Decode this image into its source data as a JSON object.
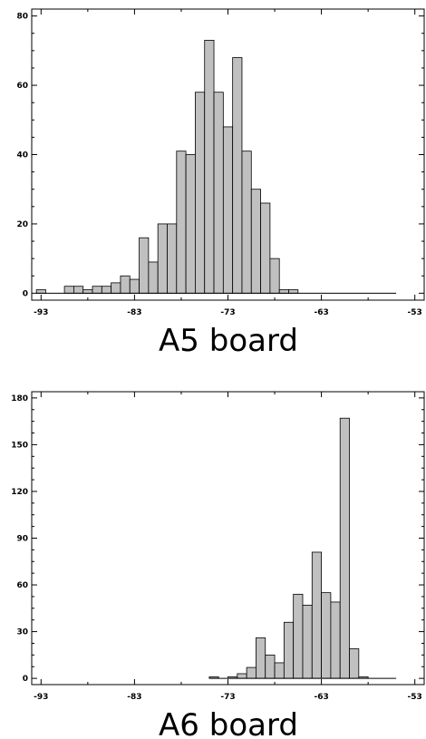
{
  "chart_data": [
    {
      "type": "bar",
      "title": "A5 board",
      "xlabel": "",
      "ylabel": "",
      "xlim": [
        -94,
        -52
      ],
      "ylim": [
        -2,
        82
      ],
      "x_ticks": [
        -93,
        -83,
        -73,
        -63,
        -53
      ],
      "y_ticks": [
        0,
        20,
        40,
        60,
        80
      ],
      "bin_width": 1,
      "bin_start": -93.5,
      "bin_end": -55,
      "values": [
        1,
        0,
        0,
        2,
        2,
        1,
        2,
        2,
        3,
        5,
        4,
        16,
        9,
        20,
        20,
        41,
        40,
        58,
        73,
        58,
        48,
        68,
        41,
        30,
        26,
        10,
        1,
        1
      ],
      "grid": false,
      "bar_color": "#c0c0c0"
    },
    {
      "type": "bar",
      "title": "A6 board",
      "xlabel": "",
      "ylabel": "",
      "xlim": [
        -94,
        -52
      ],
      "ylim": [
        -4,
        184
      ],
      "x_ticks": [
        -93,
        -83,
        -73,
        -63,
        -53
      ],
      "y_ticks": [
        0,
        30,
        60,
        90,
        120,
        150,
        180
      ],
      "bin_width": 1,
      "bin_start": -75,
      "bin_end": -55,
      "values": [
        1,
        0,
        1,
        3,
        7,
        26,
        15,
        10,
        36,
        54,
        47,
        81,
        55,
        49,
        167,
        19,
        1
      ],
      "grid": false,
      "bar_color": "#c0c0c0"
    }
  ]
}
